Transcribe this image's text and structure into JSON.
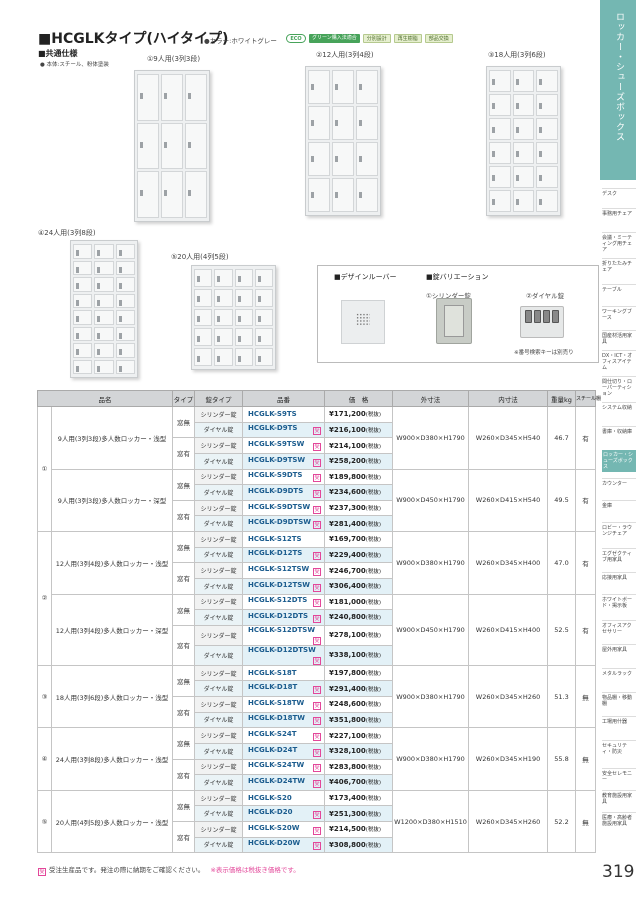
{
  "header": {
    "title": "■HCGLKタイプ(ハイタイプ)",
    "color_note": "●カラー:ホワイトグレー",
    "badges": [
      "ECO",
      "グリーン購入法適合",
      "分別設計",
      "再生樹脂",
      "部品交換"
    ],
    "spec_heading": "■共通仕様",
    "spec_body": "● 本体:スチール、粉体塗装"
  },
  "lockers": [
    {
      "label": "①9人用(3列3段)",
      "cols": 3,
      "rows": 3
    },
    {
      "label": "②12人用(3列4段)",
      "cols": 3,
      "rows": 4
    },
    {
      "label": "③18人用(3列6段)",
      "cols": 3,
      "rows": 6
    },
    {
      "label": "④24人用(3列8段)",
      "cols": 3,
      "rows": 8
    },
    {
      "label": "⑤20人用(4列5段)",
      "cols": 4,
      "rows": 5
    }
  ],
  "options": {
    "louver_heading": "■デザインルーバー",
    "lock_heading": "■錠バリエーション",
    "cylinder_label": "①シリンダー錠",
    "dial_label": "②ダイヤル錠",
    "dial_note": "※番号検索キーは別売り"
  },
  "table": {
    "headers": [
      "品名",
      "タイプ",
      "錠タイプ",
      "品番",
      "価　格",
      "外寸法",
      "内寸法",
      "重量kg",
      "スチール棚"
    ],
    "tax_label": "(税抜)",
    "groups": [
      {
        "no": "①",
        "subs": [
          {
            "name": "9人用(3列3段)多人数ロッカー・浅型",
            "outer": "W900×D380×H1790",
            "inner": "W260×D345×H540",
            "weight": "46.7",
            "shelf": "有",
            "rows": [
              {
                "type": "窓無",
                "lock": "シリンダー錠",
                "model": "HCGLK-S9TS",
                "price": "¥171,200",
                "made": false
              },
              {
                "type": "窓無",
                "lock": "ダイヤル錠",
                "model": "HCGLK-D9TS",
                "price": "¥216,100",
                "made": true
              },
              {
                "type": "窓有",
                "lock": "シリンダー錠",
                "model": "HCGLK-S9TSW",
                "price": "¥214,100",
                "made": true
              },
              {
                "type": "窓有",
                "lock": "ダイヤル錠",
                "model": "HCGLK-D9TSW",
                "price": "¥258,200",
                "made": true
              }
            ]
          },
          {
            "name": "9人用(3列3段)多人数ロッカー・深型",
            "outer": "W900×D450×H1790",
            "inner": "W260×D415×H540",
            "weight": "49.5",
            "shelf": "有",
            "rows": [
              {
                "type": "窓無",
                "lock": "シリンダー錠",
                "model": "HCGLK-S9DTS",
                "price": "¥189,800",
                "made": true
              },
              {
                "type": "窓無",
                "lock": "ダイヤル錠",
                "model": "HCGLK-D9DTS",
                "price": "¥234,600",
                "made": true
              },
              {
                "type": "窓有",
                "lock": "シリンダー錠",
                "model": "HCGLK-S9DTSW",
                "price": "¥237,300",
                "made": true
              },
              {
                "type": "窓有",
                "lock": "ダイヤル錠",
                "model": "HCGLK-D9DTSW",
                "price": "¥281,400",
                "made": true
              }
            ]
          }
        ]
      },
      {
        "no": "②",
        "subs": [
          {
            "name": "12人用(3列4段)多人数ロッカー・浅型",
            "outer": "W900×D380×H1790",
            "inner": "W260×D345×H400",
            "weight": "47.0",
            "shelf": "有",
            "rows": [
              {
                "type": "窓無",
                "lock": "シリンダー錠",
                "model": "HCGLK-S12TS",
                "price": "¥169,700",
                "made": false
              },
              {
                "type": "窓無",
                "lock": "ダイヤル錠",
                "model": "HCGLK-D12TS",
                "price": "¥229,400",
                "made": true
              },
              {
                "type": "窓有",
                "lock": "シリンダー錠",
                "model": "HCGLK-S12TSW",
                "price": "¥246,700",
                "made": true
              },
              {
                "type": "窓有",
                "lock": "ダイヤル錠",
                "model": "HCGLK-D12TSW",
                "price": "¥306,400",
                "made": true
              }
            ]
          },
          {
            "name": "12人用(3列4段)多人数ロッカー・深型",
            "outer": "W900×D450×H1790",
            "inner": "W260×D415×H400",
            "weight": "52.5",
            "shelf": "有",
            "rows": [
              {
                "type": "窓無",
                "lock": "シリンダー錠",
                "model": "HCGLK-S12DTS",
                "price": "¥181,000",
                "made": true
              },
              {
                "type": "窓無",
                "lock": "ダイヤル錠",
                "model": "HCGLK-D12DTS",
                "price": "¥240,800",
                "made": true
              },
              {
                "type": "窓有",
                "lock": "シリンダー錠",
                "model": "HCGLK-S12DTSW",
                "price": "¥278,100",
                "made": true
              },
              {
                "type": "窓有",
                "lock": "ダイヤル錠",
                "model": "HCGLK-D12DTSW",
                "price": "¥338,100",
                "made": true
              }
            ]
          }
        ]
      },
      {
        "no": "③",
        "subs": [
          {
            "name": "18人用(3列6段)多人数ロッカー・浅型",
            "outer": "W900×D380×H1790",
            "inner": "W260×D345×H260",
            "weight": "51.3",
            "shelf": "無",
            "rows": [
              {
                "type": "窓無",
                "lock": "シリンダー錠",
                "model": "HCGLK-S18T",
                "price": "¥197,800",
                "made": false
              },
              {
                "type": "窓無",
                "lock": "ダイヤル錠",
                "model": "HCGLK-D18T",
                "price": "¥291,400",
                "made": true
              },
              {
                "type": "窓有",
                "lock": "シリンダー錠",
                "model": "HCGLK-S18TW",
                "price": "¥248,600",
                "made": true
              },
              {
                "type": "窓有",
                "lock": "ダイヤル錠",
                "model": "HCGLK-D18TW",
                "price": "¥351,800",
                "made": true
              }
            ]
          }
        ]
      },
      {
        "no": "④",
        "subs": [
          {
            "name": "24人用(3列8段)多人数ロッカー・浅型",
            "outer": "W900×D380×H1790",
            "inner": "W260×D345×H190",
            "weight": "55.8",
            "shelf": "無",
            "rows": [
              {
                "type": "窓無",
                "lock": "シリンダー錠",
                "model": "HCGLK-S24T",
                "price": "¥227,100",
                "made": true
              },
              {
                "type": "窓無",
                "lock": "ダイヤル錠",
                "model": "HCGLK-D24T",
                "price": "¥328,100",
                "made": true
              },
              {
                "type": "窓有",
                "lock": "シリンダー錠",
                "model": "HCGLK-S24TW",
                "price": "¥283,800",
                "made": true
              },
              {
                "type": "窓有",
                "lock": "ダイヤル錠",
                "model": "HCGLK-D24TW",
                "price": "¥406,700",
                "made": true
              }
            ]
          }
        ]
      },
      {
        "no": "⑤",
        "subs": [
          {
            "name": "20人用(4列5段)多人数ロッカー・浅型",
            "outer": "W1200×D380×H1510",
            "inner": "W260×D345×H260",
            "weight": "52.2",
            "shelf": "無",
            "rows": [
              {
                "type": "窓無",
                "lock": "シリンダー錠",
                "model": "HCGLK-S20",
                "price": "¥173,400",
                "made": false
              },
              {
                "type": "窓無",
                "lock": "ダイヤル錠",
                "model": "HCGLK-D20",
                "price": "¥251,300",
                "made": true
              },
              {
                "type": "窓有",
                "lock": "シリンダー錠",
                "model": "HCGLK-S20W",
                "price": "¥214,500",
                "made": true
              },
              {
                "type": "窓有",
                "lock": "ダイヤル錠",
                "model": "HCGLK-D20W",
                "price": "¥308,800",
                "made": true
              }
            ]
          }
        ]
      }
    ]
  },
  "footer": {
    "made_to_order_icon": "受",
    "note": "受注生産品です。発注の際に納期をご確認ください。",
    "price_note": "※表示価格は税抜き価格です。",
    "page_number": "319"
  },
  "side_nav": {
    "title": "ロッカー・シューズボックス",
    "items": [
      "デスク",
      "事務用チェア",
      "会議・ミーティング用チェア",
      "折りたたみチェア",
      "テーブル",
      "ワーキングブース",
      "国産材活用家具",
      "DX・ICT・オフィスアイテム",
      "間仕切り・ローパーティション",
      "システム収納",
      "書庫・収納庫",
      "ロッカー・シューズボックス",
      "カウンター",
      "金庫",
      "ロビー・ラウンジチェア",
      "エグゼクティブ用家具",
      "応接用家具",
      "ホワイトボード・掲示板",
      "オフィスアクセサリー",
      "屋外用家具",
      "メタルラック",
      "物品棚・移動棚",
      "工場用什器",
      "セキュリティ・防災",
      "安全セレモニー",
      "教育施設用家具",
      "医療・高齢者施設用家具"
    ],
    "active_index": 11
  }
}
